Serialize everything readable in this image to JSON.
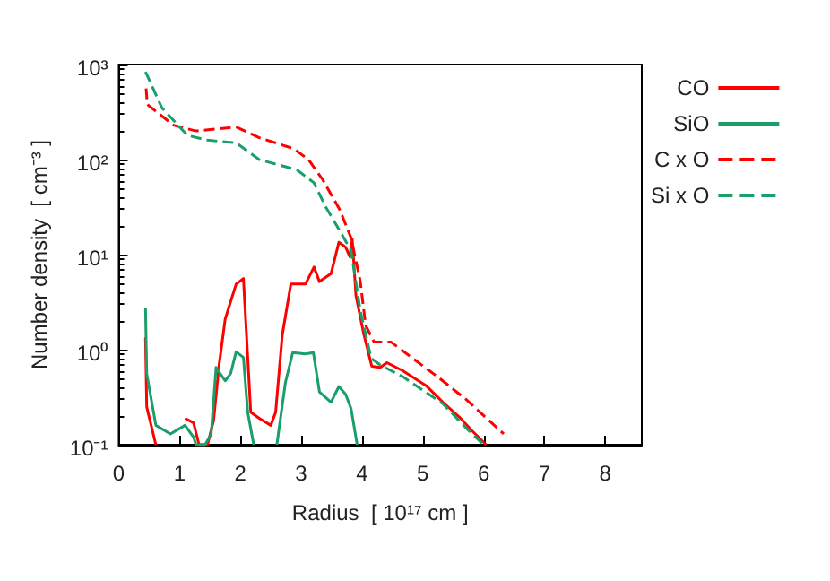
{
  "chart_data": {
    "type": "line",
    "xlabel": "Radius  [ 10¹⁷ cm ]",
    "ylabel": "Number density  [ cm⁻³ ]",
    "log": "y",
    "xlim": [
      0,
      8.6
    ],
    "xticks": [
      0,
      1,
      2,
      3,
      4,
      5,
      6,
      7,
      8
    ],
    "ylim": [
      0.1,
      1000
    ],
    "yticks": [
      {
        "value": 0.1,
        "label": "10⁻¹"
      },
      {
        "value": 1,
        "label": "10⁰"
      },
      {
        "value": 10,
        "label": "10¹"
      },
      {
        "value": 100,
        "label": "10²"
      },
      {
        "value": 1000,
        "label": "10³"
      }
    ],
    "grid": false,
    "legend": "top right",
    "marker": "none",
    "series": [
      {
        "name": "CO",
        "color": "#ff0000",
        "line_style": "solid",
        "x": [
          0.44,
          0.46,
          0.61,
          0.99,
          1.09,
          1.23,
          1.32,
          1.46,
          1.56,
          1.65,
          1.75,
          1.93,
          2.05,
          2.17,
          2.31,
          2.5,
          2.58,
          2.69,
          2.83,
          3.07,
          3.21,
          3.3,
          3.49,
          3.62,
          3.73,
          3.8,
          3.84,
          3.9,
          4.03,
          4.16,
          4.3,
          4.41,
          4.67,
          5.05,
          5.33,
          5.62,
          5.81,
          6.04
        ],
        "values": [
          1.35,
          0.25,
          0.1,
          null,
          0.19,
          0.17,
          0.1,
          0.1,
          0.18,
          0.69,
          2.1,
          4.9,
          5.6,
          0.22,
          0.19,
          0.16,
          0.22,
          1.45,
          4.9,
          4.9,
          7.4,
          5.2,
          6.3,
          13.5,
          12,
          9.5,
          14.5,
          3.7,
          1.45,
          0.67,
          0.65,
          0.73,
          0.6,
          0.42,
          0.28,
          0.19,
          0.14,
          0.1
        ]
      },
      {
        "name": "SiO",
        "color": "#1a9e6a",
        "line_style": "solid",
        "x": [
          0.44,
          0.46,
          0.61,
          0.85,
          1.09,
          1.23,
          1.27,
          1.42,
          1.52,
          1.6,
          1.75,
          1.84,
          1.93,
          2.05,
          2.12,
          2.22,
          2.4,
          2.6,
          2.74,
          2.86,
          3.07,
          3.2,
          3.3,
          3.49,
          3.62,
          3.73,
          3.82,
          3.92
        ],
        "values": [
          2.75,
          0.56,
          0.16,
          0.13,
          0.16,
          0.12,
          0.1,
          0.1,
          0.13,
          0.65,
          0.47,
          0.56,
          0.95,
          0.83,
          0.22,
          0.1,
          null,
          0.1,
          0.45,
          0.93,
          0.9,
          0.93,
          0.36,
          0.28,
          0.41,
          0.34,
          0.24,
          0.1
        ]
      },
      {
        "name": "C x O",
        "color": "#ff0000",
        "line_style": "dashed",
        "x": [
          0.45,
          0.47,
          0.9,
          1.27,
          1.93,
          2.31,
          2.88,
          3.12,
          3.35,
          3.63,
          3.82,
          3.97,
          4.06,
          4.2,
          4.48,
          4.77,
          5.24,
          5.71,
          6.33
        ],
        "values": [
          560,
          380,
          230,
          200,
          220,
          170,
          130,
          100,
          62,
          30,
          15,
          5.3,
          1.8,
          1.2,
          1.2,
          0.87,
          0.52,
          0.3,
          0.13
        ]
      },
      {
        "name": "Si x O",
        "color": "#1a9e6a",
        "line_style": "dashed",
        "x": [
          0.44,
          0.71,
          1.13,
          1.46,
          1.93,
          2.31,
          2.93,
          3.21,
          3.4,
          3.63,
          3.82,
          3.97,
          4.15,
          4.3,
          4.67,
          5.33,
          5.71,
          6.0
        ],
        "values": [
          840,
          350,
          180,
          160,
          150,
          100,
          78,
          57,
          32,
          18,
          11,
          2.6,
          0.81,
          0.69,
          0.52,
          0.27,
          0.15,
          0.1
        ]
      }
    ]
  }
}
